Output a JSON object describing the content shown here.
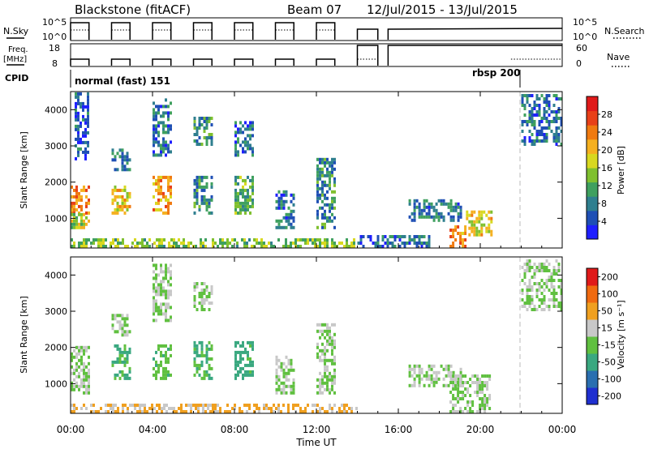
{
  "header": {
    "station": "Blackstone (fitACF)",
    "beam": "Beam 07",
    "date_range": "12/Jul/2015 - 13/Jul/2015"
  },
  "meta_panels": {
    "nsky_label": "N.Sky",
    "nsky_ticks": [
      "10^5",
      "10^0"
    ],
    "nsearch_label": "N.Search",
    "nsearch_ticks": [
      "10^5",
      "10^0"
    ],
    "freq_label": "Freq.",
    "freq_unit": "[MHz]",
    "freq_ticks": [
      "18",
      "8"
    ],
    "nave_label": "Nave",
    "nave_ticks": [
      "60",
      "0"
    ],
    "cpid_label": "CPID",
    "cpid_modes": [
      {
        "name": "normal (fast) 151"
      },
      {
        "name": "rbsp 200"
      }
    ]
  },
  "x_axis": {
    "label": "Time UT",
    "ticks": [
      "00:00",
      "04:00",
      "08:00",
      "12:00",
      "16:00",
      "20:00",
      "00:00"
    ]
  },
  "colors": {
    "power": [
      "#1f1fff",
      "#1f4fb5",
      "#2f7f8f",
      "#3fa05f",
      "#7fc02f",
      "#d8d820",
      "#f5b020",
      "#f07a10",
      "#e84018",
      "#e01a1a"
    ],
    "velocity": [
      "#e01a1a",
      "#f06a10",
      "#f0a020",
      "#c8c8c8",
      "#60c040",
      "#3aa880",
      "#2a6fb0",
      "#1f2fd0"
    ]
  },
  "chart_data": [
    {
      "type": "heatmap",
      "title": "Power",
      "ylabel": "Slant Range [km]",
      "xlabel": "",
      "x_range_hours": [
        0,
        24
      ],
      "ylim": [
        180,
        4500
      ],
      "y_ticks": [
        1000,
        2000,
        3000,
        4000
      ],
      "colorbar": {
        "label": "Power [dB]",
        "ticks": [
          "28",
          "24",
          "20",
          "16",
          "12",
          "8",
          "4"
        ],
        "range": [
          0,
          32
        ]
      },
      "regions": [
        {
          "t0": 0.0,
          "t1": 0.9,
          "r0": 1100,
          "r1": 1900,
          "level": 24
        },
        {
          "t0": 0.0,
          "t1": 0.9,
          "r0": 700,
          "r1": 1100,
          "level": 16
        },
        {
          "t0": 0.2,
          "t1": 0.9,
          "r0": 2600,
          "r1": 4400,
          "level": 6
        },
        {
          "t0": 2.0,
          "t1": 2.9,
          "r0": 1100,
          "r1": 1900,
          "level": 20
        },
        {
          "t0": 2.0,
          "t1": 2.9,
          "r0": 2300,
          "r1": 2900,
          "level": 8
        },
        {
          "t0": 4.0,
          "t1": 4.9,
          "r0": 1100,
          "r1": 2100,
          "level": 22
        },
        {
          "t0": 4.0,
          "t1": 4.9,
          "r0": 2700,
          "r1": 4300,
          "level": 7
        },
        {
          "t0": 6.0,
          "t1": 6.9,
          "r0": 1100,
          "r1": 2100,
          "level": 9
        },
        {
          "t0": 6.0,
          "t1": 6.9,
          "r0": 3000,
          "r1": 3800,
          "level": 10
        },
        {
          "t0": 8.0,
          "t1": 8.9,
          "r0": 1100,
          "r1": 2100,
          "level": 12
        },
        {
          "t0": 8.0,
          "t1": 8.9,
          "r0": 2700,
          "r1": 3600,
          "level": 7
        },
        {
          "t0": 10.0,
          "t1": 10.9,
          "r0": 700,
          "r1": 1700,
          "level": 7
        },
        {
          "t0": 12.0,
          "t1": 12.9,
          "r0": 700,
          "r1": 2600,
          "level": 9
        },
        {
          "t0": 14.0,
          "t1": 17.5,
          "r0": 180,
          "r1": 450,
          "level": 6
        },
        {
          "t0": 16.5,
          "t1": 19.0,
          "r0": 900,
          "r1": 1500,
          "level": 8
        },
        {
          "t0": 18.5,
          "t1": 19.3,
          "r0": 180,
          "r1": 800,
          "level": 24
        },
        {
          "t0": 19.3,
          "t1": 20.5,
          "r0": 500,
          "r1": 1200,
          "level": 18
        },
        {
          "t0": 22.0,
          "t1": 24.0,
          "r0": 3000,
          "r1": 4400,
          "level": 7
        },
        {
          "t0": 0.0,
          "t1": 14.0,
          "r0": 180,
          "r1": 400,
          "level": 14
        }
      ]
    },
    {
      "type": "heatmap",
      "title": "Velocity",
      "ylabel": "Slant Range [km]",
      "xlabel": "Time UT",
      "x_range_hours": [
        0,
        24
      ],
      "ylim": [
        180,
        4500
      ],
      "y_ticks": [
        1000,
        2000,
        3000,
        4000
      ],
      "colorbar": {
        "label": "Velocity [m s⁻¹]",
        "ticks": [
          "200",
          "100",
          "50",
          "15",
          "-15",
          "-50",
          "-100",
          "-200"
        ],
        "range": [
          -250,
          250
        ]
      },
      "regions": [
        {
          "t0": 0.0,
          "t1": 0.9,
          "r0": 700,
          "r1": 2000,
          "level": 0
        },
        {
          "t0": 2.0,
          "t1": 2.9,
          "r0": 1100,
          "r1": 2000,
          "level": -70
        },
        {
          "t0": 2.0,
          "t1": 2.9,
          "r0": 2300,
          "r1": 2900,
          "level": 0
        },
        {
          "t0": 4.0,
          "t1": 4.9,
          "r0": 1100,
          "r1": 2000,
          "level": -40
        },
        {
          "t0": 4.0,
          "t1": 4.9,
          "r0": 2700,
          "r1": 4300,
          "level": 0
        },
        {
          "t0": 6.0,
          "t1": 6.9,
          "r0": 1100,
          "r1": 2100,
          "level": -60
        },
        {
          "t0": 6.0,
          "t1": 6.9,
          "r0": 3000,
          "r1": 3800,
          "level": 0
        },
        {
          "t0": 8.0,
          "t1": 8.9,
          "r0": 1100,
          "r1": 2100,
          "level": -90
        },
        {
          "t0": 10.0,
          "t1": 10.9,
          "r0": 700,
          "r1": 1700,
          "level": 0
        },
        {
          "t0": 12.0,
          "t1": 12.9,
          "r0": 700,
          "r1": 2600,
          "level": 0
        },
        {
          "t0": 16.5,
          "t1": 19.0,
          "r0": 900,
          "r1": 1500,
          "level": 0
        },
        {
          "t0": 18.5,
          "t1": 20.5,
          "r0": 180,
          "r1": 1200,
          "level": 0
        },
        {
          "t0": 22.0,
          "t1": 24.0,
          "r0": 3000,
          "r1": 4400,
          "level": 0
        },
        {
          "t0": 0.0,
          "t1": 14.0,
          "r0": 180,
          "r1": 400,
          "level": 70
        }
      ]
    }
  ]
}
